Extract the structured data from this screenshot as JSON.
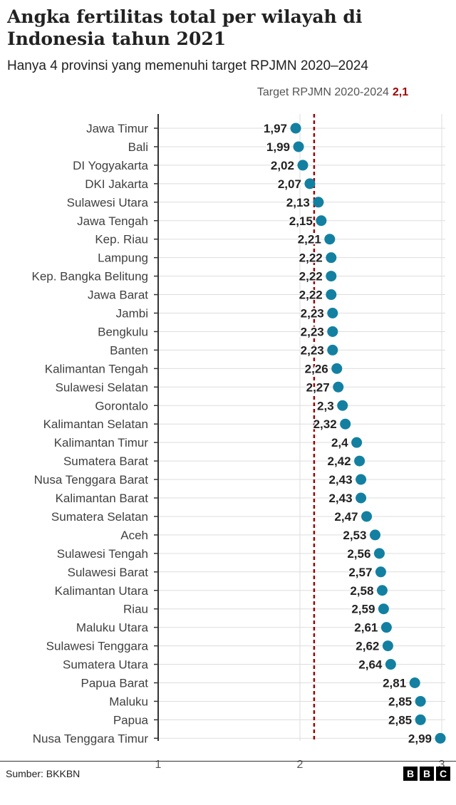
{
  "header": {
    "title": "Angka fertilitas total per wilayah di Indonesia tahun 2021",
    "subtitle": "Hanya 4 provinsi yang memenuhi target RPJMN 2020–2024"
  },
  "footer": {
    "source": "Sumber: BKKBN",
    "logo_letters": [
      "B",
      "B",
      "C"
    ]
  },
  "chart_data": {
    "type": "scatter",
    "categories": [
      "Jawa Timur",
      "Bali",
      "DI Yogyakarta",
      "DKI Jakarta",
      "Sulawesi Utara",
      "Jawa Tengah",
      "Kep. Riau",
      "Lampung",
      "Kep. Bangka Belitung",
      "Jawa Barat",
      "Jambi",
      "Bengkulu",
      "Banten",
      "Kalimantan Tengah",
      "Sulawesi Selatan",
      "Gorontalo",
      "Kalimantan Selatan",
      "Kalimantan Timur",
      "Sumatera Barat",
      "Nusa Tenggara Barat",
      "Kalimantan Barat",
      "Sumatera Selatan",
      "Aceh",
      "Sulawesi Tengah",
      "Sulawesi Barat",
      "Kalimantan Utara",
      "Riau",
      "Maluku Utara",
      "Sulawesi Tenggara",
      "Sumatera Utara",
      "Papua Barat",
      "Maluku",
      "Papua",
      "Nusa Tenggara Timur"
    ],
    "values": [
      1.97,
      1.99,
      2.02,
      2.07,
      2.13,
      2.15,
      2.21,
      2.22,
      2.22,
      2.22,
      2.23,
      2.23,
      2.23,
      2.26,
      2.27,
      2.3,
      2.32,
      2.4,
      2.42,
      2.43,
      2.43,
      2.47,
      2.53,
      2.56,
      2.57,
      2.58,
      2.59,
      2.61,
      2.62,
      2.64,
      2.81,
      2.85,
      2.85,
      2.99
    ],
    "value_labels": [
      "1,97",
      "1,99",
      "2,02",
      "2,07",
      "2,13",
      "2,15",
      "2,21",
      "2,22",
      "2,22",
      "2,22",
      "2,23",
      "2,23",
      "2,23",
      "2,26",
      "2,27",
      "2,3",
      "2,32",
      "2,4",
      "2,42",
      "2,43",
      "2,43",
      "2,47",
      "2,53",
      "2,56",
      "2,57",
      "2,58",
      "2,59",
      "2,61",
      "2,62",
      "2,64",
      "2,81",
      "2,85",
      "2,85",
      "2,99"
    ],
    "xlim": [
      1,
      3
    ],
    "xticks": [
      1,
      2,
      3
    ],
    "xtick_labels": [
      "1",
      "2",
      "3"
    ],
    "grid": true,
    "reference_line": {
      "value": 2.1,
      "label": "Target RPJMN 2020-2024",
      "value_label": "2,1",
      "color": "#990000"
    },
    "dot_color": "#1380a1",
    "grid_color": "#dddddd"
  }
}
